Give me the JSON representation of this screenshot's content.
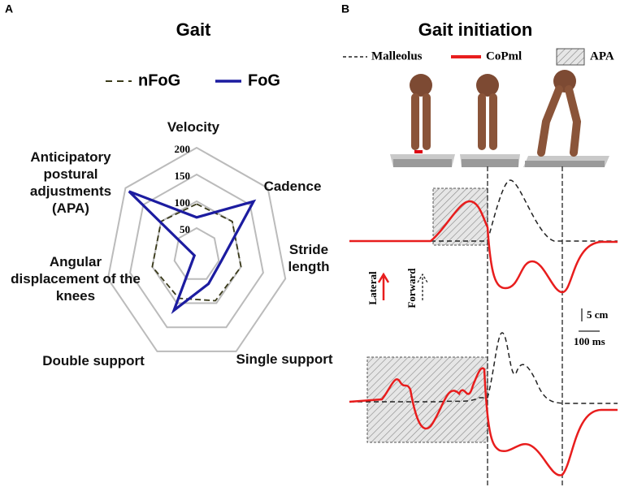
{
  "chart_data": [
    {
      "type": "radar",
      "panel_label": "A",
      "title": "Gait",
      "categories": [
        "Velocity",
        "Cadence",
        "Stride length",
        "Single support",
        "Double support",
        "Angular displacement of the knees",
        "Anticipatory postural adjustments (APA)"
      ],
      "series": [
        {
          "name": "nFoG",
          "color": "#3a3a1a",
          "dashed": true,
          "values": [
            95,
            100,
            100,
            95,
            90,
            100,
            100
          ]
        },
        {
          "name": "FoG",
          "color": "#1c1ca0",
          "dashed": false,
          "values": [
            70,
            160,
            55,
            60,
            115,
            5,
            190
          ]
        }
      ],
      "rlim": [
        0,
        200
      ],
      "rticks": [
        50,
        100,
        150,
        200
      ]
    },
    {
      "type": "illustration",
      "panel_label": "B",
      "title": "Gait initiation",
      "legend": [
        "Malleolus",
        "CoPml",
        "APA"
      ],
      "annotations": [
        "Lateral",
        "Forward",
        "5 cm",
        "100 ms"
      ]
    }
  ]
}
